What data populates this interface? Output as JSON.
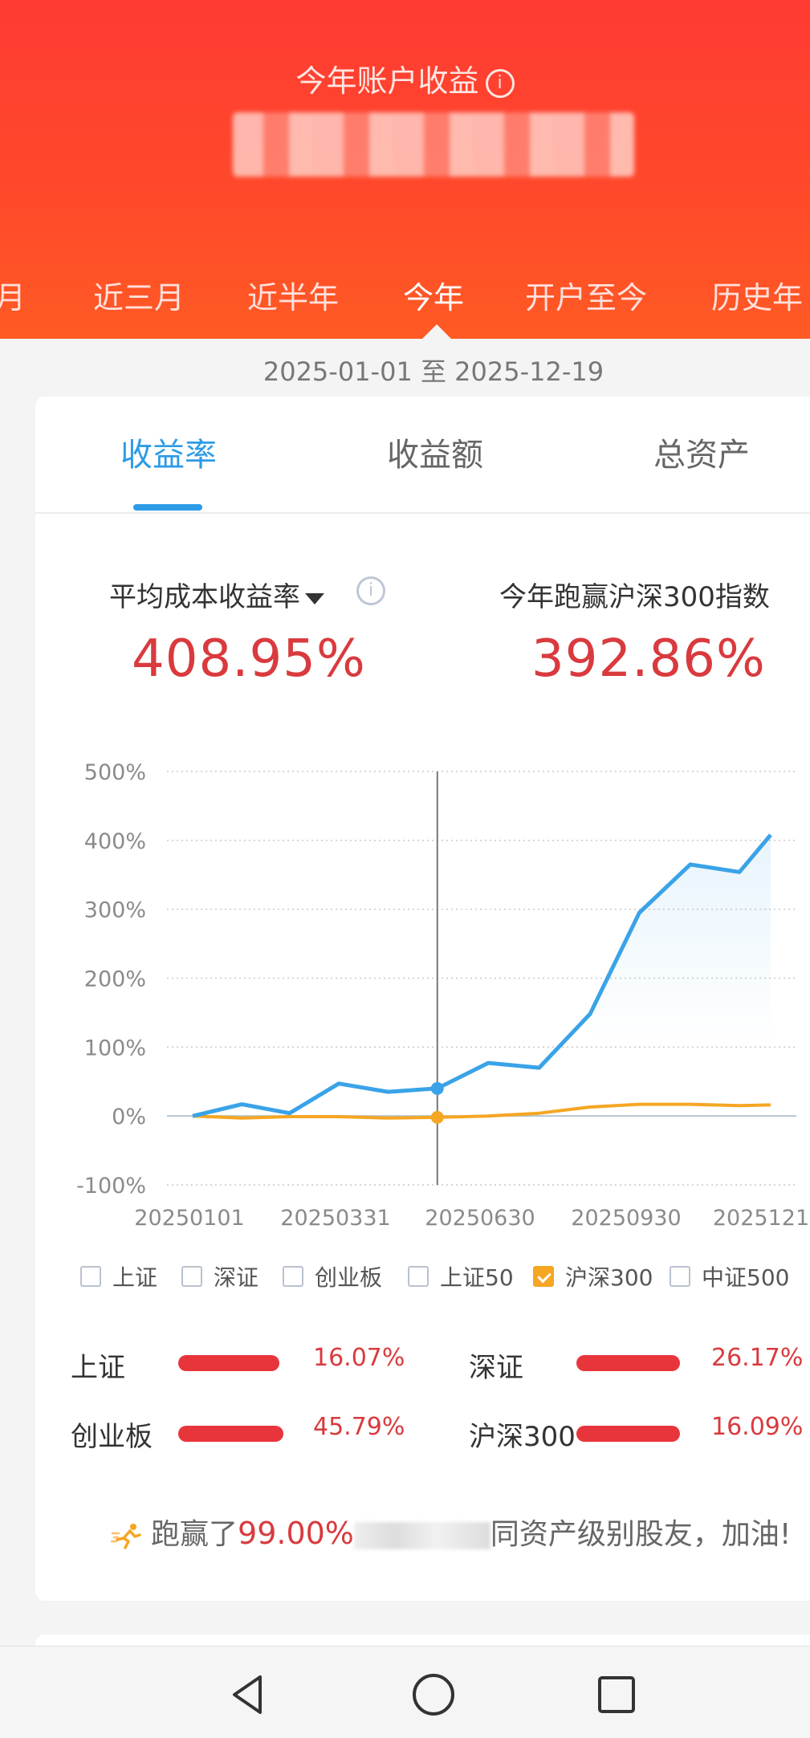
{
  "header": {
    "title": "今年账户收益",
    "info_icon": "i",
    "period_tabs": [
      {
        "label": "月",
        "active": false
      },
      {
        "label": "近三月",
        "active": false
      },
      {
        "label": "近半年",
        "active": false
      },
      {
        "label": "今年",
        "active": true
      },
      {
        "label": "开户至今",
        "active": false
      },
      {
        "label": "历史年",
        "active": false
      }
    ]
  },
  "date_range": "2025-01-01 至 2025-12-19",
  "metric_tabs": [
    {
      "label": "收益率",
      "active": true
    },
    {
      "label": "收益额",
      "active": false
    },
    {
      "label": "总资产",
      "active": false
    }
  ],
  "stats": {
    "left_label": "平均成本收益率",
    "left_value": "408.95%",
    "right_label": "今年跑赢沪深300指数",
    "right_value": "392.86%",
    "info_icon": "i"
  },
  "chart_data": {
    "type": "line",
    "y_tick_labels": [
      "500%",
      "400%",
      "300%",
      "200%",
      "100%",
      "0%",
      "-100%"
    ],
    "y_ticks": [
      500,
      400,
      300,
      200,
      100,
      0,
      -100
    ],
    "ylim": [
      -100,
      500
    ],
    "x_tick_labels": [
      "20250101",
      "20250331",
      "20250630",
      "20250930",
      "2025121"
    ],
    "x": [
      "2025-01-01",
      "2025-01-31",
      "2025-03-01",
      "2025-03-31",
      "2025-04-30",
      "2025-05-30",
      "2025-06-30",
      "2025-07-31",
      "2025-08-31",
      "2025-09-30",
      "2025-10-31",
      "2025-11-30",
      "2025-12-19"
    ],
    "series": [
      {
        "values": [
          0,
          17,
          4,
          47,
          35,
          40,
          77,
          70,
          148,
          295,
          365,
          354,
          408
        ],
        "color": "#3aa3e8"
      },
      {
        "name": "沪深300",
        "values": [
          0,
          -3,
          -1,
          -1,
          -3,
          -2,
          0,
          4,
          13,
          17,
          17,
          15,
          16
        ],
        "color": "#f5a623"
      }
    ],
    "crosshair_index": 5,
    "grid": true
  },
  "legend": [
    {
      "label": "上证",
      "checked": false
    },
    {
      "label": "深证",
      "checked": false
    },
    {
      "label": "创业板",
      "checked": false
    },
    {
      "label": "上证50",
      "checked": false
    },
    {
      "label": "沪深300",
      "checked": true
    },
    {
      "label": "中证500",
      "checked": false
    }
  ],
  "comparisons": [
    {
      "label": "上证",
      "value": "16.07%",
      "fill": 0.94
    },
    {
      "label": "深证",
      "value": "26.17%",
      "fill": 0.96
    },
    {
      "label": "创业板",
      "value": "45.79%",
      "fill": 0.98
    },
    {
      "label": "沪深300",
      "value": "16.09%",
      "fill": 0.96
    }
  ],
  "footer": {
    "prefix": "跑赢了",
    "percent": "99.00%",
    "suffix": "同资产级别股友，加油!",
    "runner_icon": "runner-icon"
  },
  "nav": {
    "back_icon": "back-triangle-icon",
    "home_icon": "home-circle-icon",
    "recent_icon": "recent-square-icon"
  },
  "colors": {
    "header": "#ff4a2a",
    "accent_blue": "#2d9be6",
    "red_value": "#d93a3e",
    "orange": "#f5a623"
  }
}
